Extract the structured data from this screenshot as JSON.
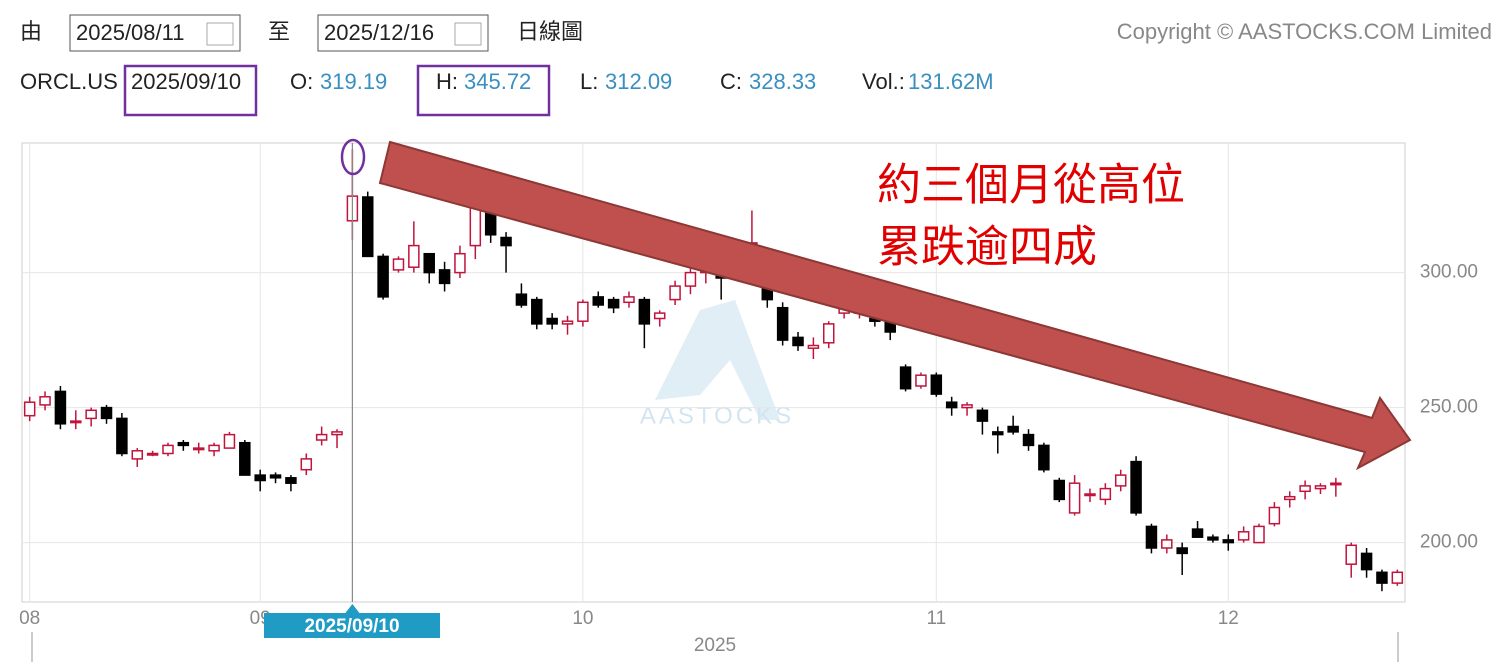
{
  "toolbar": {
    "from_label": "由",
    "from_date": "2025/08/11",
    "to_label": "至",
    "to_date": "2025/12/16",
    "chart_kind": "日線圖",
    "copyright": "Copyright © AASTOCKS.COM Limited"
  },
  "info": {
    "symbol": "ORCL.US",
    "date": "2025/09/10",
    "open_label": "O:",
    "open": "319.19",
    "high_label": "H:",
    "high": "345.72",
    "low_label": "L:",
    "low": "312.09",
    "close_label": "C:",
    "close": "328.33",
    "volume_label": "Vol.:",
    "volume": "131.62M"
  },
  "chart_data": {
    "type": "candlestick",
    "up_color": "#c0143c",
    "down_color": "#000000",
    "annotation": [
      "約三個月從高位",
      "累跌逾四成"
    ],
    "watermark": "AASTOCKS",
    "crosshair_label": "2025/09/10",
    "xlabel": "2025",
    "xlim": [
      -0.5,
      89.5
    ],
    "xticks": [
      {
        "value": 0,
        "label": "08"
      },
      {
        "value": 15,
        "label": "09"
      },
      {
        "value": 36,
        "label": "10"
      },
      {
        "value": 59,
        "label": "11"
      },
      {
        "value": 78,
        "label": "12"
      }
    ],
    "ylim": [
      178,
      348
    ],
    "yticks": [
      {
        "value": 200,
        "label": "200.00"
      },
      {
        "value": 250,
        "label": "250.00"
      },
      {
        "value": 300,
        "label": "300.00"
      }
    ],
    "grid": true,
    "open": [
      247,
      251,
      256,
      245,
      246,
      250,
      246,
      231,
      233,
      233,
      237,
      235,
      234,
      235,
      237,
      225,
      225,
      224,
      227,
      238,
      240,
      319.19,
      328,
      306,
      301,
      302,
      307,
      301,
      300,
      310,
      325,
      313,
      292,
      290,
      283,
      281,
      282,
      291,
      290,
      289,
      290,
      283,
      290,
      295,
      300,
      303,
      306,
      311,
      298,
      287,
      276,
      272,
      274,
      285,
      285,
      283,
      282,
      265,
      258,
      262,
      252,
      250,
      249,
      241,
      243,
      240,
      236,
      223,
      211,
      218,
      216,
      221,
      230,
      206,
      198,
      198,
      205,
      202,
      201,
      201,
      200,
      207,
      216,
      219,
      220,
      222,
      192,
      196,
      189,
      185
    ],
    "high": [
      254,
      256,
      258,
      249,
      250,
      251,
      248,
      235,
      234,
      237,
      238,
      237,
      237,
      241,
      238,
      227,
      226,
      225,
      233,
      243,
      242,
      345.72,
      330,
      307,
      306,
      319,
      307,
      304,
      310,
      330,
      328,
      315,
      296,
      291,
      285,
      284,
      290,
      293,
      291,
      293,
      291,
      286,
      297,
      305,
      307,
      305,
      310,
      323,
      300,
      289,
      278,
      276,
      282,
      287,
      290,
      287,
      285,
      266,
      263,
      263,
      254,
      252,
      250,
      243,
      247,
      242,
      237,
      224,
      225,
      220,
      222,
      227,
      232,
      207,
      203,
      200,
      208,
      203,
      203,
      206,
      207,
      215,
      219,
      223,
      222,
      224,
      200,
      198,
      190,
      190
    ],
    "low": [
      245,
      249,
      242,
      242,
      243,
      244,
      232,
      228,
      232,
      232,
      234,
      233,
      232,
      235,
      225,
      219,
      222,
      219,
      225,
      236,
      235,
      312.09,
      306,
      290,
      300,
      300,
      296,
      293,
      298,
      305,
      311,
      300,
      287,
      279,
      279,
      277,
      280,
      287,
      285,
      287,
      272,
      280,
      288,
      292,
      296,
      290,
      303,
      305,
      287,
      273,
      271,
      268,
      272,
      283,
      283,
      280,
      275,
      256,
      257,
      254,
      247,
      247,
      240,
      233,
      240,
      234,
      226,
      215,
      210,
      215,
      214,
      219,
      210,
      196,
      196,
      188,
      202,
      200,
      197,
      200,
      200,
      206,
      213,
      216,
      218,
      217,
      187,
      187,
      182,
      184
    ],
    "close": [
      252,
      254,
      244,
      245,
      249,
      246,
      233,
      234,
      233,
      236,
      236,
      235,
      236,
      240,
      225,
      223,
      224,
      222,
      231,
      240,
      241,
      328.33,
      306,
      291,
      305,
      310,
      300,
      296,
      307,
      326,
      314,
      310,
      288,
      281,
      281,
      282,
      289,
      288,
      287,
      291,
      281,
      285,
      295,
      300,
      302,
      298,
      308,
      311,
      290,
      275,
      273,
      273,
      281,
      287,
      287,
      282,
      278,
      257,
      262,
      255,
      250,
      251,
      245,
      240,
      241,
      236,
      227,
      216,
      222,
      218,
      220,
      225,
      211,
      198,
      201,
      196,
      202,
      201,
      200,
      204,
      206,
      213,
      217,
      221,
      221,
      222,
      199,
      190,
      185,
      189
    ]
  }
}
